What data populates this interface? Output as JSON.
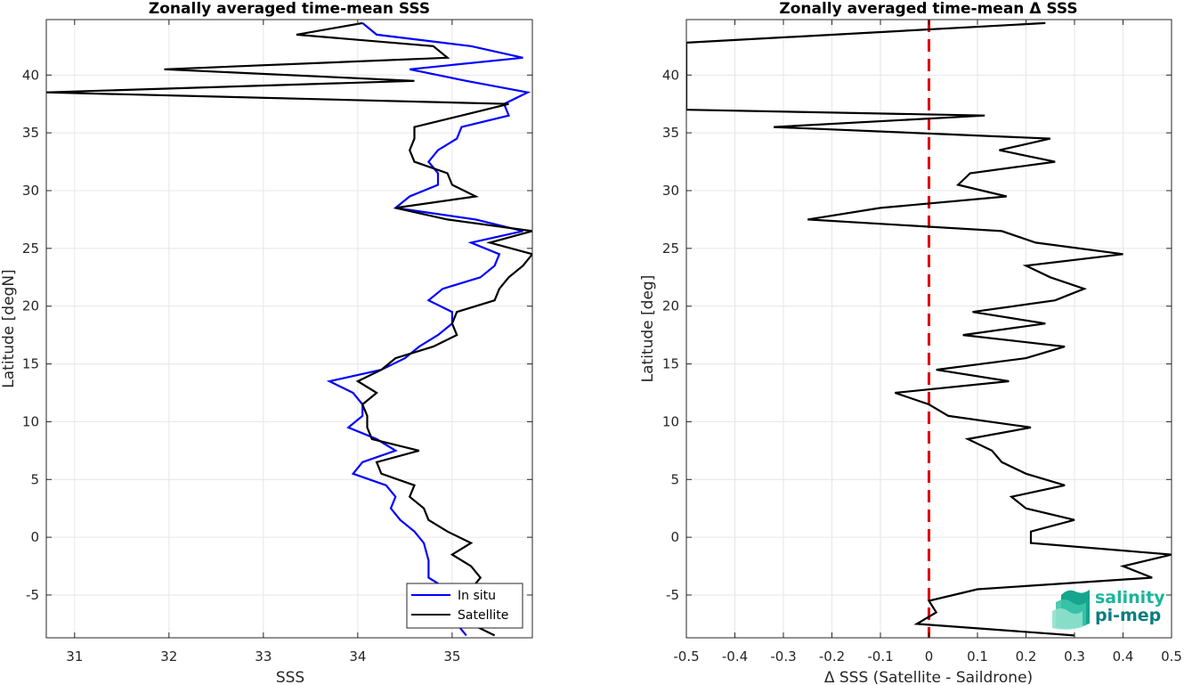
{
  "logo": {
    "line1": "salinity",
    "line2": "pi-mep"
  },
  "chart_data": [
    {
      "type": "line",
      "title": "Zonally averaged time-mean SSS",
      "xlabel": "SSS",
      "ylabel": "Latitude [degN]",
      "xlim": [
        30.7,
        35.85
      ],
      "ylim": [
        -8.7,
        44.8
      ],
      "xticks": [
        31,
        32,
        33,
        34,
        35
      ],
      "yticks": [
        -5,
        0,
        5,
        10,
        15,
        20,
        25,
        30,
        35,
        40
      ],
      "grid": true,
      "legend_position": "bottom-right",
      "series": [
        {
          "name": "In situ",
          "color": "#0000ff",
          "points": [
            [
              35.15,
              -8.5
            ],
            [
              35.05,
              -7.5
            ],
            [
              34.95,
              -5.5
            ],
            [
              34.85,
              -4.0
            ],
            [
              34.75,
              -3.5
            ],
            [
              34.75,
              -2.0
            ],
            [
              34.7,
              -0.5
            ],
            [
              34.6,
              0.5
            ],
            [
              34.45,
              1.5
            ],
            [
              34.35,
              2.5
            ],
            [
              34.4,
              3.5
            ],
            [
              34.3,
              4.5
            ],
            [
              33.95,
              5.5
            ],
            [
              34.05,
              6.5
            ],
            [
              34.4,
              7.5
            ],
            [
              34.2,
              8.5
            ],
            [
              33.9,
              9.5
            ],
            [
              34.05,
              10.5
            ],
            [
              34.05,
              11.5
            ],
            [
              33.95,
              12.5
            ],
            [
              33.7,
              13.5
            ],
            [
              34.25,
              14.5
            ],
            [
              34.5,
              15.5
            ],
            [
              34.65,
              16.5
            ],
            [
              34.85,
              17.5
            ],
            [
              35.0,
              18.5
            ],
            [
              35.0,
              19.5
            ],
            [
              34.75,
              20.5
            ],
            [
              34.9,
              21.5
            ],
            [
              35.3,
              22.5
            ],
            [
              35.45,
              23.5
            ],
            [
              35.5,
              24.5
            ],
            [
              35.2,
              25.5
            ],
            [
              35.75,
              26.5
            ],
            [
              35.25,
              27.5
            ],
            [
              34.4,
              28.5
            ],
            [
              34.55,
              29.5
            ],
            [
              34.85,
              30.5
            ],
            [
              34.85,
              31.5
            ],
            [
              34.75,
              32.5
            ],
            [
              34.85,
              33.5
            ],
            [
              35.05,
              34.5
            ],
            [
              35.1,
              35.5
            ],
            [
              35.6,
              36.5
            ],
            [
              35.55,
              37.5
            ],
            [
              35.8,
              38.5
            ],
            [
              35.15,
              39.5
            ],
            [
              34.55,
              40.5
            ],
            [
              35.75,
              41.5
            ],
            [
              35.2,
              42.5
            ],
            [
              34.2,
              43.5
            ],
            [
              34.05,
              44.5
            ]
          ]
        },
        {
          "name": "Satellite",
          "color": "#000000",
          "points": [
            [
              35.45,
              -8.5
            ],
            [
              35.2,
              -7.5
            ],
            [
              34.95,
              -6.5
            ],
            [
              35.15,
              -5.5
            ],
            [
              35.2,
              -4.5
            ],
            [
              35.3,
              -3.5
            ],
            [
              35.2,
              -2.5
            ],
            [
              35.0,
              -1.5
            ],
            [
              35.2,
              -0.5
            ],
            [
              34.95,
              0.5
            ],
            [
              34.75,
              1.5
            ],
            [
              34.7,
              2.5
            ],
            [
              34.55,
              3.5
            ],
            [
              34.6,
              4.5
            ],
            [
              34.25,
              5.5
            ],
            [
              34.2,
              6.5
            ],
            [
              34.65,
              7.5
            ],
            [
              34.15,
              8.5
            ],
            [
              34.1,
              9.5
            ],
            [
              34.1,
              10.5
            ],
            [
              34.05,
              11.5
            ],
            [
              34.2,
              12.5
            ],
            [
              34.0,
              13.5
            ],
            [
              34.25,
              14.5
            ],
            [
              34.4,
              15.5
            ],
            [
              34.8,
              16.5
            ],
            [
              35.05,
              17.5
            ],
            [
              35.0,
              18.5
            ],
            [
              35.05,
              19.5
            ],
            [
              35.45,
              20.5
            ],
            [
              35.5,
              21.5
            ],
            [
              35.6,
              22.5
            ],
            [
              35.75,
              23.5
            ],
            [
              35.85,
              24.5
            ],
            [
              35.4,
              25.5
            ],
            [
              35.85,
              26.5
            ],
            [
              34.95,
              27.5
            ],
            [
              34.4,
              28.5
            ],
            [
              35.25,
              29.5
            ],
            [
              35.0,
              30.5
            ],
            [
              34.95,
              31.5
            ],
            [
              34.6,
              32.5
            ],
            [
              34.55,
              33.5
            ],
            [
              34.6,
              34.5
            ],
            [
              34.6,
              35.5
            ],
            [
              35.1,
              36.5
            ],
            [
              35.6,
              37.5
            ],
            [
              30.7,
              38.5
            ],
            [
              34.6,
              39.5
            ],
            [
              31.95,
              40.5
            ],
            [
              34.95,
              41.5
            ],
            [
              34.8,
              42.5
            ],
            [
              33.35,
              43.5
            ],
            [
              34.05,
              44.5
            ]
          ]
        }
      ]
    },
    {
      "type": "line",
      "title": "Zonally averaged time-mean Δ SSS",
      "xlabel": "Δ SSS (Satellite - Saildrone)",
      "ylabel": "Latitude [deg]",
      "xlim": [
        -0.5,
        0.5
      ],
      "ylim": [
        -8.7,
        44.8
      ],
      "xticks": [
        -0.5,
        -0.4,
        -0.3,
        -0.2,
        -0.1,
        0,
        0.1,
        0.2,
        0.3,
        0.4,
        0.5
      ],
      "yticks": [
        -5,
        0,
        5,
        10,
        15,
        20,
        25,
        30,
        35,
        40
      ],
      "grid": true,
      "reference_line": {
        "x": 0,
        "color": "#e00000",
        "style": "dashed"
      },
      "series": [
        {
          "color": "#000000",
          "points": [
            [
              0.3,
              -8.5
            ],
            [
              -0.025,
              -7.5
            ],
            [
              0.015,
              -6.5
            ],
            [
              0.0,
              -5.5
            ],
            [
              0.1,
              -4.5
            ],
            [
              0.46,
              -3.5
            ],
            [
              0.4,
              -2.5
            ],
            [
              0.5,
              -1.5
            ],
            [
              0.21,
              -0.5
            ],
            [
              0.21,
              0.5
            ],
            [
              0.3,
              1.5
            ],
            [
              0.2,
              2.5
            ],
            [
              0.17,
              3.5
            ],
            [
              0.28,
              4.5
            ],
            [
              0.2,
              5.5
            ],
            [
              0.15,
              6.5
            ],
            [
              0.13,
              7.5
            ],
            [
              0.08,
              8.5
            ],
            [
              0.21,
              9.5
            ],
            [
              0.04,
              10.5
            ],
            [
              0.0,
              11.5
            ],
            [
              -0.07,
              12.5
            ],
            [
              0.165,
              13.5
            ],
            [
              0.015,
              14.5
            ],
            [
              0.2,
              15.5
            ],
            [
              0.28,
              16.5
            ],
            [
              0.07,
              17.5
            ],
            [
              0.24,
              18.5
            ],
            [
              0.09,
              19.5
            ],
            [
              0.26,
              20.5
            ],
            [
              0.32,
              21.5
            ],
            [
              0.25,
              22.5
            ],
            [
              0.2,
              23.5
            ],
            [
              0.4,
              24.5
            ],
            [
              0.22,
              25.5
            ],
            [
              0.15,
              26.5
            ],
            [
              -0.25,
              27.5
            ],
            [
              -0.1,
              28.5
            ],
            [
              0.16,
              29.5
            ],
            [
              0.06,
              30.5
            ],
            [
              0.085,
              31.5
            ],
            [
              0.26,
              32.5
            ],
            [
              0.145,
              33.5
            ],
            [
              0.25,
              34.5
            ],
            [
              -0.32,
              35.5
            ],
            [
              0.115,
              36.5
            ],
            [
              -0.5,
              37.0
            ],
            [
              -0.5,
              42.8
            ],
            [
              0.24,
              44.5
            ]
          ]
        }
      ]
    }
  ]
}
